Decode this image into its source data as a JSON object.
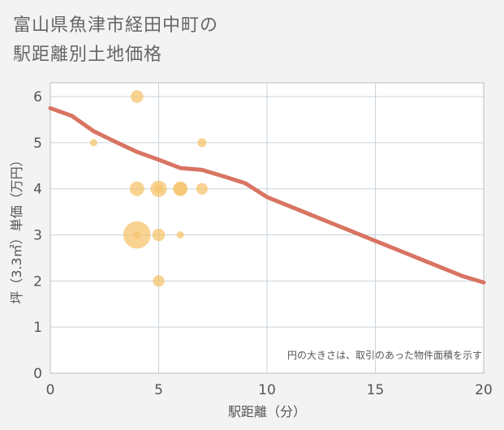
{
  "title_line1": "富山県魚津市経田中町の",
  "title_line2": "駅距離別土地価格",
  "chart_data": {
    "type": "scatter",
    "title": "富山県魚津市経田中町の駅距離別土地価格",
    "xlabel": "駅距離（分）",
    "ylabel": "坪（3.3㎡）単価（万円）",
    "xlim": [
      0,
      20
    ],
    "ylim": [
      0,
      6.3
    ],
    "xticks": [
      0,
      5,
      10,
      15,
      20
    ],
    "yticks": [
      0,
      1,
      2,
      3,
      4,
      5,
      6
    ],
    "grid": true,
    "note": "円の大きさは、取引のあった物件面積を示す",
    "bubble_color": "#f5c46e",
    "line_color": "#d87462",
    "points": [
      {
        "x": 2,
        "y": 5,
        "size": 1
      },
      {
        "x": 4,
        "y": 6,
        "size": 3
      },
      {
        "x": 4,
        "y": 4,
        "size": 4
      },
      {
        "x": 4,
        "y": 3,
        "size": 14
      },
      {
        "x": 4,
        "y": 3,
        "size": 1
      },
      {
        "x": 5,
        "y": 4,
        "size": 5
      },
      {
        "x": 5,
        "y": 4,
        "size": 1.5
      },
      {
        "x": 5,
        "y": 3,
        "size": 3
      },
      {
        "x": 5,
        "y": 2,
        "size": 2.5
      },
      {
        "x": 6,
        "y": 4,
        "size": 4
      },
      {
        "x": 6,
        "y": 4,
        "size": 3
      },
      {
        "x": 6,
        "y": 3,
        "size": 1
      },
      {
        "x": 7,
        "y": 5,
        "size": 1.5
      },
      {
        "x": 7,
        "y": 4,
        "size": 2.5
      }
    ],
    "trend": {
      "x": [
        0,
        1,
        2,
        3,
        4,
        5,
        6,
        7,
        8,
        9,
        10,
        11,
        12,
        13,
        14,
        15,
        16,
        17,
        18,
        19,
        20
      ],
      "y": [
        5.75,
        5.58,
        5.25,
        5.02,
        4.8,
        4.63,
        4.45,
        4.41,
        4.27,
        4.12,
        3.82,
        3.63,
        3.44,
        3.25,
        3.06,
        2.87,
        2.68,
        2.49,
        2.3,
        2.11,
        1.97
      ]
    }
  }
}
